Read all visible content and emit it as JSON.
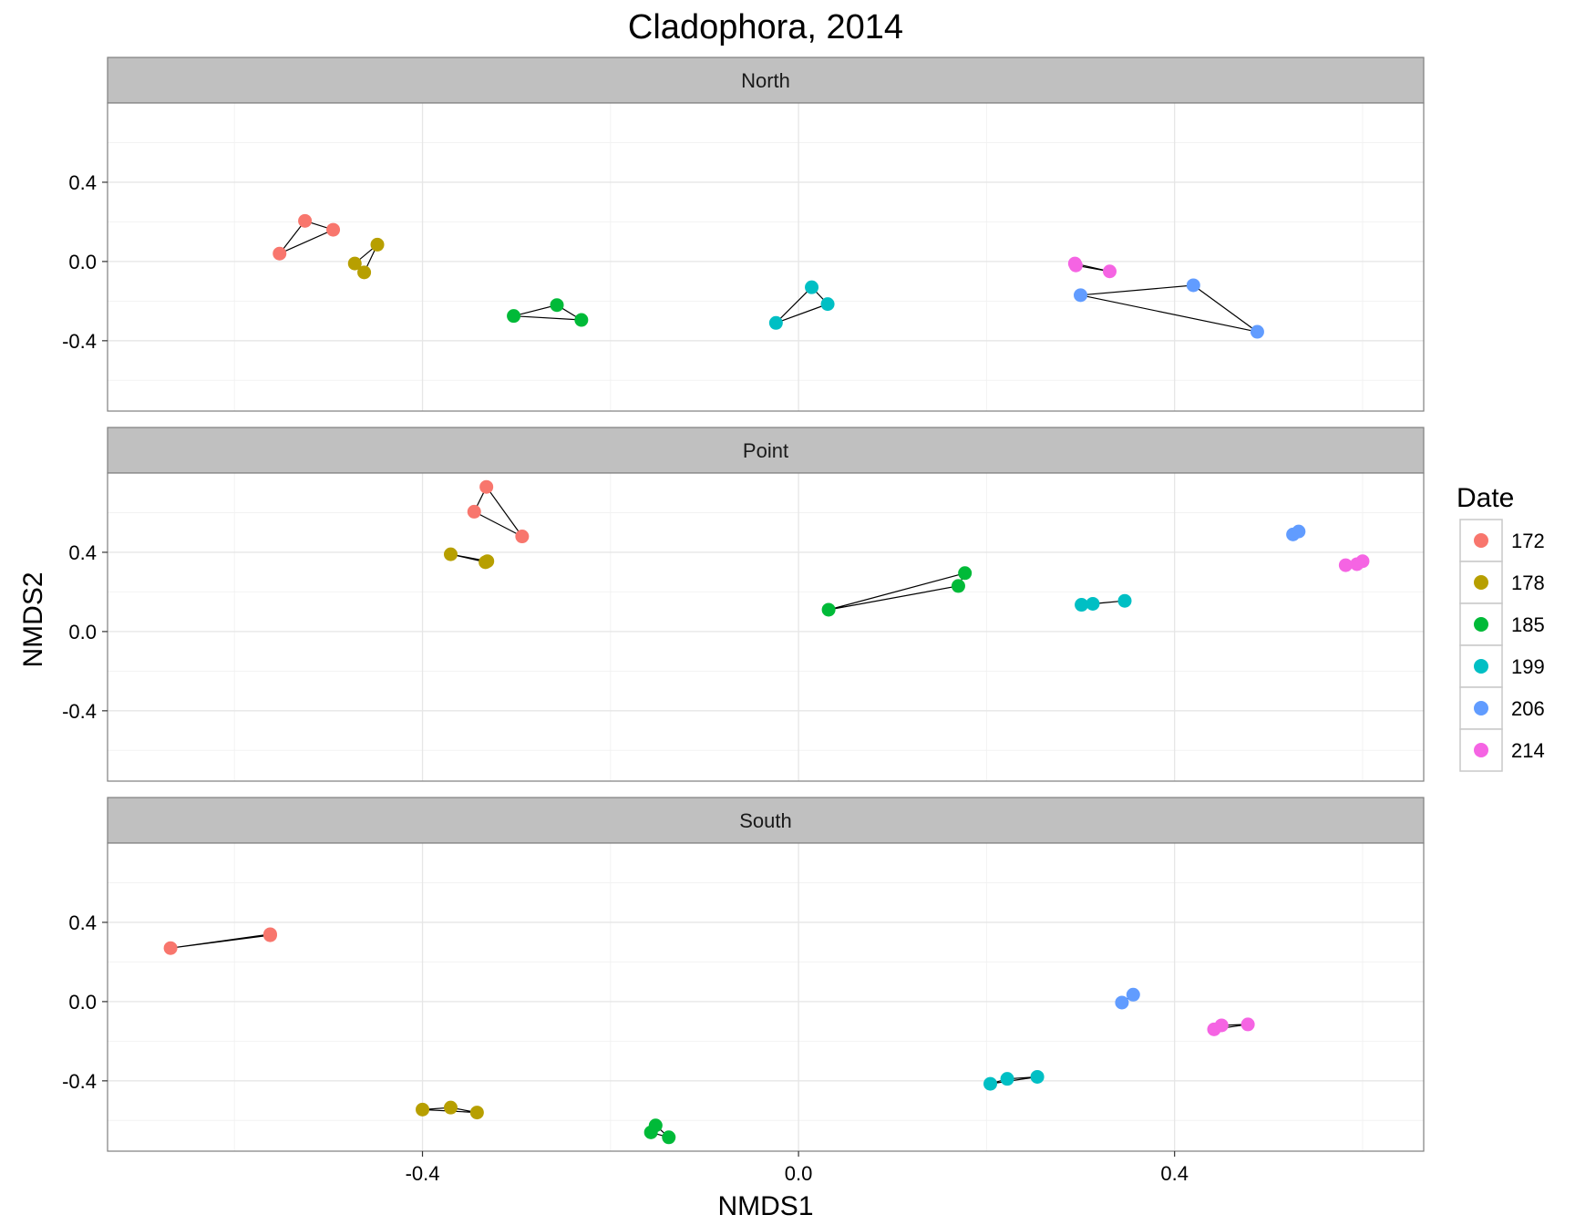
{
  "chart_data": {
    "type": "scatter",
    "title": "Cladophora, 2014",
    "xlabel": "NMDS1",
    "ylabel": "NMDS2",
    "xlim": [
      -0.735,
      0.665
    ],
    "ylim": [
      -0.755,
      0.8
    ],
    "x_ticks": [
      -0.4,
      0.0,
      0.4
    ],
    "x_tick_labels": [
      "-0.4",
      "0.0",
      "0.4"
    ],
    "y_ticks": [
      0.4,
      0.0,
      -0.4
    ],
    "y_tick_labels": [
      "0.4",
      "0.0",
      "-0.4"
    ],
    "grid": true,
    "legend": {
      "title": "Date",
      "position": "right"
    },
    "connectors": "hull lines joining points of the same Date within a panel",
    "series": [
      {
        "name": "172",
        "color": "#F8766D"
      },
      {
        "name": "178",
        "color": "#B79F00"
      },
      {
        "name": "185",
        "color": "#00BA38"
      },
      {
        "name": "199",
        "color": "#00BFC4"
      },
      {
        "name": "206",
        "color": "#619CFF"
      },
      {
        "name": "214",
        "color": "#F564E3"
      }
    ],
    "panels": [
      {
        "label": "North",
        "groups": [
          {
            "series": "172",
            "points": [
              [
                -0.552,
                0.04
              ],
              [
                -0.525,
                0.205
              ],
              [
                -0.495,
                0.16
              ]
            ]
          },
          {
            "series": "178",
            "points": [
              [
                -0.472,
                -0.01
              ],
              [
                -0.462,
                -0.055
              ],
              [
                -0.448,
                0.085
              ]
            ]
          },
          {
            "series": "185",
            "points": [
              [
                -0.303,
                -0.275
              ],
              [
                -0.257,
                -0.22
              ],
              [
                -0.231,
                -0.295
              ]
            ]
          },
          {
            "series": "199",
            "points": [
              [
                -0.024,
                -0.31
              ],
              [
                0.014,
                -0.13
              ],
              [
                0.031,
                -0.215
              ]
            ]
          },
          {
            "series": "206",
            "points": [
              [
                0.3,
                -0.17
              ],
              [
                0.42,
                -0.12
              ],
              [
                0.488,
                -0.355
              ]
            ]
          },
          {
            "series": "214",
            "points": [
              [
                0.294,
                -0.01
              ],
              [
                0.295,
                -0.02
              ],
              [
                0.331,
                -0.05
              ]
            ]
          }
        ]
      },
      {
        "label": "Point",
        "groups": [
          {
            "series": "172",
            "points": [
              [
                -0.345,
                0.605
              ],
              [
                -0.332,
                0.73
              ],
              [
                -0.294,
                0.48
              ]
            ]
          },
          {
            "series": "178",
            "points": [
              [
                -0.37,
                0.39
              ],
              [
                -0.333,
                0.35
              ],
              [
                -0.331,
                0.355
              ]
            ]
          },
          {
            "series": "185",
            "points": [
              [
                0.032,
                0.11
              ],
              [
                0.17,
                0.23
              ],
              [
                0.177,
                0.295
              ]
            ]
          },
          {
            "series": "199",
            "points": [
              [
                0.301,
                0.135
              ],
              [
                0.313,
                0.14
              ],
              [
                0.347,
                0.155
              ]
            ]
          },
          {
            "series": "206",
            "points": [
              [
                0.526,
                0.49
              ],
              [
                0.532,
                0.505
              ]
            ]
          },
          {
            "series": "214",
            "points": [
              [
                0.582,
                0.335
              ],
              [
                0.594,
                0.34
              ],
              [
                0.6,
                0.355
              ]
            ]
          }
        ]
      },
      {
        "label": "South",
        "groups": [
          {
            "series": "172",
            "points": [
              [
                -0.668,
                0.27
              ],
              [
                -0.562,
                0.335
              ],
              [
                -0.562,
                0.34
              ]
            ]
          },
          {
            "series": "178",
            "points": [
              [
                -0.4,
                -0.545
              ],
              [
                -0.37,
                -0.535
              ],
              [
                -0.342,
                -0.56
              ]
            ]
          },
          {
            "series": "185",
            "points": [
              [
                -0.157,
                -0.66
              ],
              [
                -0.152,
                -0.625
              ],
              [
                -0.138,
                -0.685
              ]
            ]
          },
          {
            "series": "199",
            "points": [
              [
                0.204,
                -0.415
              ],
              [
                0.222,
                -0.39
              ],
              [
                0.254,
                -0.38
              ]
            ]
          },
          {
            "series": "206",
            "points": [
              [
                0.344,
                -0.005
              ],
              [
                0.356,
                0.035
              ]
            ]
          },
          {
            "series": "214",
            "points": [
              [
                0.442,
                -0.14
              ],
              [
                0.45,
                -0.12
              ],
              [
                0.478,
                -0.115
              ]
            ]
          }
        ]
      }
    ]
  }
}
